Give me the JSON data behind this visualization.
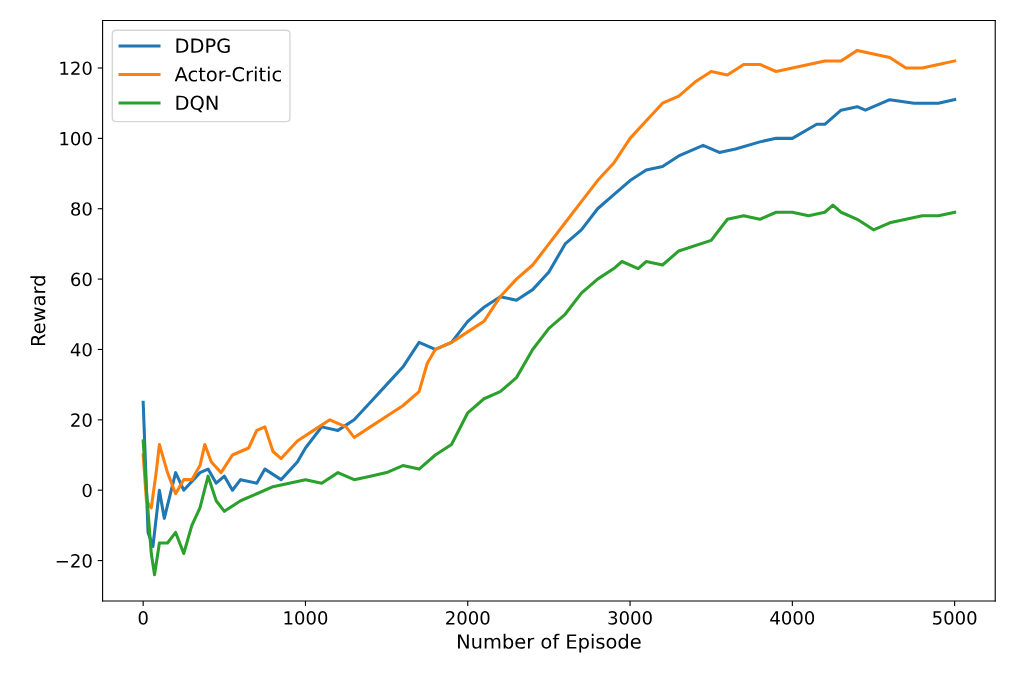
{
  "chart_data": {
    "type": "line",
    "xlabel": "Number of Episode",
    "ylabel": "Reward",
    "xlim": [
      -250,
      5250
    ],
    "xticks": [
      0,
      1000,
      2000,
      3000,
      4000,
      5000
    ],
    "ylim": [
      -31.5,
      133.5
    ],
    "yticks": [
      {
        "value": -20,
        "label": "−20"
      },
      0,
      20,
      40,
      60,
      80,
      100,
      120
    ],
    "grid": false,
    "legend": "top left",
    "series": [
      {
        "name": "DDPG",
        "color": "#1f77b4",
        "x": [
          0,
          30,
          60,
          100,
          130,
          200,
          250,
          350,
          400,
          450,
          500,
          550,
          600,
          700,
          750,
          850,
          950,
          1000,
          1100,
          1200,
          1300,
          1400,
          1500,
          1600,
          1700,
          1800,
          1900,
          2000,
          2100,
          2200,
          2300,
          2400,
          2500,
          2600,
          2700,
          2800,
          2900,
          3000,
          3100,
          3200,
          3300,
          3450,
          3550,
          3650,
          3800,
          3900,
          4000,
          4150,
          4200,
          4300,
          4400,
          4450,
          4600,
          4750,
          4900,
          5000
        ],
        "values": [
          25,
          -12,
          -16,
          0,
          -8,
          5,
          0,
          5,
          6,
          2,
          4,
          0,
          3,
          2,
          6,
          3,
          8,
          12,
          18,
          17,
          20,
          25,
          30,
          35,
          42,
          40,
          42,
          48,
          52,
          55,
          54,
          57,
          62,
          70,
          74,
          80,
          84,
          88,
          91,
          92,
          95,
          98,
          96,
          97,
          99,
          100,
          100,
          104,
          104,
          108,
          109,
          108,
          111,
          110,
          110,
          111
        ]
      },
      {
        "name": "Actor-Critic",
        "color": "#ff7f0e",
        "x": [
          0,
          20,
          50,
          80,
          100,
          150,
          200,
          250,
          300,
          350,
          380,
          420,
          480,
          550,
          650,
          700,
          750,
          800,
          850,
          950,
          1050,
          1150,
          1250,
          1300,
          1400,
          1500,
          1600,
          1700,
          1750,
          1800,
          1900,
          2000,
          2100,
          2200,
          2300,
          2400,
          2500,
          2600,
          2700,
          2800,
          2900,
          3000,
          3100,
          3200,
          3300,
          3400,
          3500,
          3600,
          3700,
          3800,
          3900,
          4000,
          4100,
          4200,
          4300,
          4400,
          4500,
          4600,
          4700,
          4800,
          4900,
          5000
        ],
        "values": [
          10,
          -3,
          -5,
          5,
          13,
          5,
          -1,
          3,
          3,
          7,
          13,
          8,
          5,
          10,
          12,
          17,
          18,
          11,
          9,
          14,
          17,
          20,
          18,
          15,
          18,
          21,
          24,
          28,
          36,
          40,
          42,
          45,
          48,
          55,
          60,
          64,
          70,
          76,
          82,
          88,
          93,
          100,
          105,
          110,
          112,
          116,
          119,
          118,
          121,
          121,
          119,
          120,
          121,
          122,
          122,
          125,
          124,
          123,
          120,
          120,
          121,
          122
        ]
      },
      {
        "name": "DQN",
        "color": "#2ca02c",
        "x": [
          0,
          20,
          50,
          70,
          100,
          150,
          200,
          250,
          300,
          350,
          400,
          450,
          500,
          600,
          700,
          800,
          900,
          1000,
          1100,
          1200,
          1300,
          1400,
          1500,
          1600,
          1700,
          1800,
          1900,
          2000,
          2100,
          2200,
          2300,
          2400,
          2500,
          2600,
          2700,
          2800,
          2900,
          2950,
          3050,
          3100,
          3200,
          3300,
          3500,
          3600,
          3700,
          3800,
          3900,
          4000,
          4100,
          4200,
          4250,
          4300,
          4400,
          4500,
          4600,
          4700,
          4800,
          4900,
          5000
        ],
        "values": [
          14,
          0,
          -18,
          -24,
          -15,
          -15,
          -12,
          -18,
          -10,
          -5,
          4,
          -3,
          -6,
          -3,
          -1,
          1,
          2,
          3,
          2,
          5,
          3,
          4,
          5,
          7,
          6,
          10,
          13,
          22,
          26,
          28,
          32,
          40,
          46,
          50,
          56,
          60,
          63,
          65,
          63,
          65,
          64,
          68,
          71,
          77,
          78,
          77,
          79,
          79,
          78,
          79,
          81,
          79,
          77,
          74,
          76,
          77,
          78,
          78,
          79
        ]
      }
    ]
  }
}
